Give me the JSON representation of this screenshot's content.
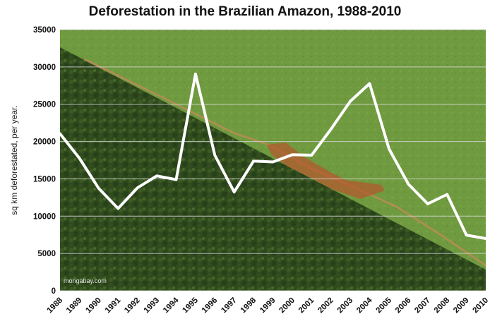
{
  "chart_data": {
    "type": "line",
    "title": "Deforestation in the Brazilian Amazon, 1988-2010",
    "ylabel": "sq km deforestated, per year.",
    "xlabel": "",
    "ylim": [
      0,
      35000
    ],
    "yticks": [
      0,
      5000,
      10000,
      15000,
      20000,
      25000,
      30000,
      35000
    ],
    "grid": true,
    "watermark": "mongabay.com",
    "line_color": "#ffffff",
    "x": [
      "1988",
      "1989",
      "1990",
      "1991",
      "1992",
      "1993",
      "1994",
      "1995",
      "1996",
      "1997",
      "1998",
      "1999",
      "2000",
      "2001",
      "2002",
      "2003",
      "2004",
      "2005",
      "2006",
      "2007",
      "2008",
      "2009",
      "2010"
    ],
    "series": [
      {
        "values": [
          21050,
          17770,
          13730,
          11030,
          13790,
          15400,
          14900,
          29060,
          18160,
          13230,
          17380,
          17260,
          18230,
          18170,
          21650,
          25400,
          27770,
          19010,
          14290,
          11650,
          12910,
          7460,
          7000
        ]
      }
    ]
  }
}
